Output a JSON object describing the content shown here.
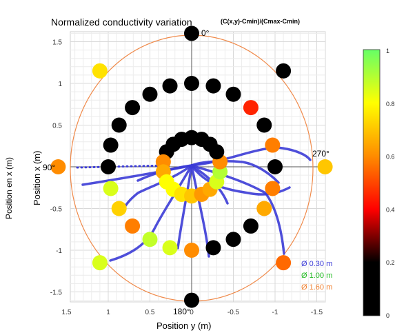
{
  "title": "Normalized conductivity variation",
  "formula": "(C(x,y)-Cmin)/(Cmax-Cmin)",
  "outer_ylabel": "Position en x (m)",
  "inner_ylabel": "Position x (m)",
  "xlabel": "Position y (m)",
  "angles": {
    "top": "0°",
    "left": "90°",
    "bottom": "180°",
    "right": "270°"
  },
  "colorbar": {
    "ticks": [
      "1",
      "0.8",
      "0.6",
      "0.4",
      "0.2",
      "0"
    ],
    "gradient": [
      "#000000",
      "#000000",
      "#ff0000",
      "#ff8c00",
      "#ffff00",
      "#66ff66"
    ]
  },
  "legend": [
    {
      "label": "Ø 0.30 m",
      "color": "#3b3bd6"
    },
    {
      "label": "Ø 1.00 m",
      "color": "#22bb22"
    },
    {
      "label": "Ø 1.60 m",
      "color": "#f08030"
    }
  ],
  "chart_data": {
    "type": "scatter",
    "xlim": [
      1.6,
      -1.6
    ],
    "ylim": [
      -1.6,
      1.65
    ],
    "x_ticks": [
      "1.5",
      "1",
      "0.5",
      "0",
      "-0.5",
      "-1",
      "-1.5"
    ],
    "y_ticks": [
      "1.5",
      "1",
      "0.5",
      "0",
      "-0.5",
      "-1",
      "-1.5"
    ],
    "grid": true,
    "colorscale_range": [
      0,
      1
    ],
    "outer_circle_radius": 1.6,
    "points": [
      {
        "y": 0.0,
        "x": 1.6,
        "v": 0.0
      },
      {
        "y": -1.1,
        "x": 1.15,
        "v": 0.0
      },
      {
        "y": 1.1,
        "x": 1.15,
        "v": 0.75
      },
      {
        "y": 1.6,
        "x": 0.0,
        "v": 0.6
      },
      {
        "y": -1.6,
        "x": 0.0,
        "v": 0.7
      },
      {
        "y": 1.1,
        "x": -1.15,
        "v": 0.85
      },
      {
        "y": -1.1,
        "x": -1.15,
        "v": 0.55
      },
      {
        "y": 0.0,
        "x": -1.6,
        "v": 0.0
      },
      {
        "y": 0.0,
        "x": 1.0,
        "v": 0.0
      },
      {
        "y": 0.26,
        "x": 0.97,
        "v": 0.0
      },
      {
        "y": 0.5,
        "x": 0.87,
        "v": 0.0
      },
      {
        "y": 0.71,
        "x": 0.71,
        "v": 0.0
      },
      {
        "y": 0.87,
        "x": 0.5,
        "v": 0.0
      },
      {
        "y": 0.97,
        "x": 0.26,
        "v": 0.0
      },
      {
        "y": 1.0,
        "x": 0.0,
        "v": 0.0
      },
      {
        "y": 0.97,
        "x": -0.26,
        "v": 0.85
      },
      {
        "y": 0.87,
        "x": -0.5,
        "v": 0.72
      },
      {
        "y": 0.71,
        "x": -0.71,
        "v": 0.58
      },
      {
        "y": 0.5,
        "x": -0.87,
        "v": 0.88
      },
      {
        "y": 0.26,
        "x": -0.97,
        "v": 0.85
      },
      {
        "y": 0.0,
        "x": -1.0,
        "v": 0.6
      },
      {
        "y": -0.26,
        "x": -0.97,
        "v": 0.0
      },
      {
        "y": -0.5,
        "x": -0.87,
        "v": 0.0
      },
      {
        "y": -0.71,
        "x": -0.71,
        "v": 0.0
      },
      {
        "y": -0.87,
        "x": -0.5,
        "v": 0.65
      },
      {
        "y": -0.97,
        "x": -0.26,
        "v": 0.58
      },
      {
        "y": -1.0,
        "x": 0.0,
        "v": 0.0
      },
      {
        "y": -0.97,
        "x": 0.26,
        "v": 0.58
      },
      {
        "y": -0.87,
        "x": 0.5,
        "v": 0.0
      },
      {
        "y": -0.71,
        "x": 0.71,
        "v": 0.45
      },
      {
        "y": -0.5,
        "x": 0.87,
        "v": 0.0
      },
      {
        "y": -0.26,
        "x": 0.97,
        "v": 0.0
      },
      {
        "y": 0.0,
        "x": 0.35,
        "v": 0.0
      },
      {
        "y": 0.12,
        "x": 0.33,
        "v": 0.0
      },
      {
        "y": 0.22,
        "x": 0.27,
        "v": 0.0
      },
      {
        "y": 0.3,
        "x": 0.18,
        "v": 0.0
      },
      {
        "y": 0.34,
        "x": 0.06,
        "v": 0.6
      },
      {
        "y": 0.34,
        "x": -0.06,
        "v": 0.65
      },
      {
        "y": 0.3,
        "x": -0.18,
        "v": 0.8
      },
      {
        "y": 0.22,
        "x": -0.27,
        "v": 0.8
      },
      {
        "y": 0.12,
        "x": -0.33,
        "v": 0.75
      },
      {
        "y": 0.0,
        "x": -0.35,
        "v": 0.7
      },
      {
        "y": -0.12,
        "x": -0.33,
        "v": 0.62
      },
      {
        "y": -0.22,
        "x": -0.27,
        "v": 0.65
      },
      {
        "y": -0.3,
        "x": -0.18,
        "v": 0.85
      },
      {
        "y": -0.34,
        "x": -0.06,
        "v": 0.9
      },
      {
        "y": -0.34,
        "x": 0.06,
        "v": 0.6
      },
      {
        "y": -0.3,
        "x": 0.18,
        "v": 0.0
      },
      {
        "y": -0.22,
        "x": 0.27,
        "v": 0.0
      },
      {
        "y": -0.12,
        "x": 0.33,
        "v": 0.0
      }
    ]
  }
}
